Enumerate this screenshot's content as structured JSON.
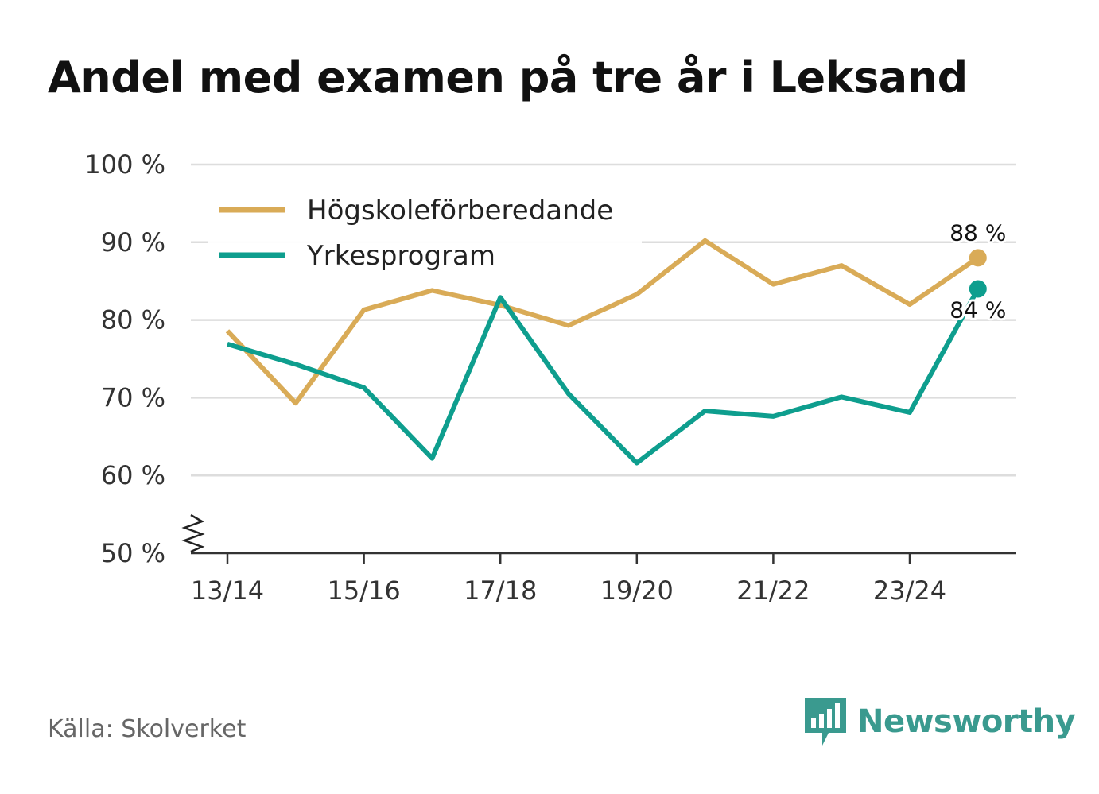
{
  "title": "Andel med examen på tre år i Leksand",
  "source": "Källa: Skolverket",
  "brand": {
    "name": "Newsworthy",
    "icon": "newsworthy-logo-icon",
    "color": "#3a9a8f"
  },
  "chart_data": {
    "type": "line",
    "title": "Andel med examen på tre år i Leksand",
    "xlabel": "",
    "ylabel": "",
    "ylim": [
      50,
      100
    ],
    "y_ticks": [
      50,
      60,
      70,
      80,
      90,
      100
    ],
    "y_tick_labels": [
      "50 %",
      "60 %",
      "70 %",
      "80 %",
      "90 %",
      "100 %"
    ],
    "axis_break": true,
    "grid": true,
    "legend_position": "top-left",
    "categories": [
      "13/14",
      "14/15",
      "15/16",
      "16/17",
      "17/18",
      "18/19",
      "19/20",
      "20/21",
      "21/22",
      "22/23",
      "23/24",
      "24/25"
    ],
    "x_tick_labels": [
      "13/14",
      "15/16",
      "17/18",
      "19/20",
      "21/22",
      "23/24"
    ],
    "series": [
      {
        "name": "Högskoleförberedande",
        "color": "#d9ab57",
        "values": [
          78.6,
          69.3,
          81.3,
          83.8,
          81.9,
          79.3,
          83.3,
          90.2,
          84.6,
          87.0,
          82.0,
          88.0
        ],
        "end_label": "88 %"
      },
      {
        "name": "Yrkesprogram",
        "color": "#0e9e8e",
        "values": [
          76.9,
          74.3,
          71.3,
          62.2,
          82.9,
          70.5,
          61.6,
          68.3,
          67.6,
          70.1,
          68.1,
          84.0
        ],
        "end_label": "84 %"
      }
    ]
  }
}
